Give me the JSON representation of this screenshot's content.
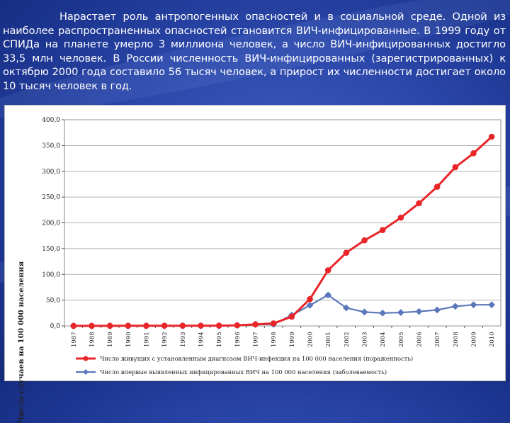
{
  "slide": {
    "paragraph": "Нарастает роль антропогенных опасностей и в социальной среде. Одной из наиболее распространенных опасностей становится ВИЧ-инфицированные. В 1999 году от СПИДа на планете умерло 3 миллиона человек, а число ВИЧ-инфицированных достигло 33,5 млн человек. В России численность ВИЧ-инфицированных (зарегистрированных) к октябрю 2000 года составило 56 тысяч человек, а прирост их численности достигает около 10 тысяч человек в год."
  },
  "colors": {
    "series1": "#e8262a",
    "series2": "#5b78ba",
    "background": "#2a46a8"
  },
  "chart_data": {
    "type": "line",
    "ylabel": "Число случаев на 100 000 населения",
    "ylim": [
      0,
      400
    ],
    "yticks": [
      "0,0",
      "50,0",
      "100,0",
      "150,0",
      "200,0",
      "250,0",
      "300,0",
      "350,0",
      "400,0"
    ],
    "ytick_values": [
      0,
      50,
      100,
      150,
      200,
      250,
      300,
      350,
      400
    ],
    "grid": "horizontal",
    "legend_placement": "bottom",
    "x": [
      "1987",
      "1988",
      "1989",
      "1990",
      "1991",
      "1992",
      "1993",
      "1994",
      "1995",
      "1996",
      "1997",
      "1998",
      "1999",
      "2000",
      "2001",
      "2002",
      "2003",
      "2004",
      "2005",
      "2006",
      "2007",
      "2008",
      "2009",
      "2010"
    ],
    "series": [
      {
        "name": "Число живущих с установленным диагнозом ВИЧ-инфекция на 100 000 населения (пораженность)",
        "marker": "circle",
        "values": [
          0.1,
          0.1,
          0.2,
          0.3,
          0.3,
          0.4,
          0.4,
          0.5,
          0.6,
          1.2,
          3,
          5,
          18,
          52,
          108,
          142,
          166,
          186,
          210,
          238,
          270,
          308,
          335,
          367
        ]
      },
      {
        "name": "Число впервые выявленных инфицированных ВИЧ на 100 000 населения (заболеваемость)",
        "marker": "diamond",
        "values": [
          0.1,
          0.1,
          0.1,
          0.2,
          0.1,
          0.1,
          0.1,
          0.1,
          0.1,
          1,
          3,
          3,
          21,
          40,
          60,
          35,
          27,
          25,
          26,
          28,
          31,
          38,
          41,
          41
        ]
      }
    ]
  }
}
